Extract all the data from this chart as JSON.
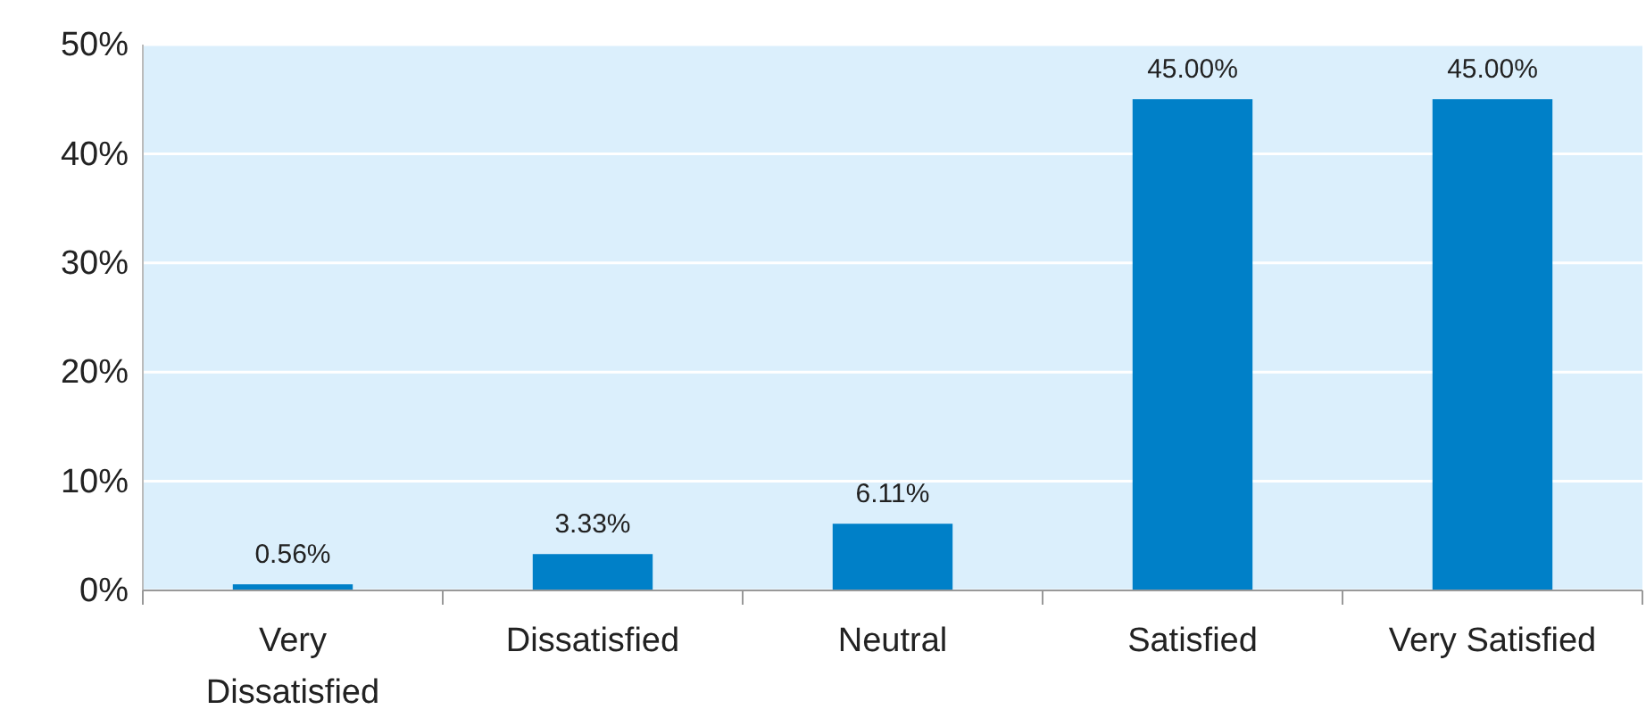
{
  "chart_data": {
    "type": "bar",
    "categories": [
      "Very Dissatisfied",
      "Dissatisfied",
      "Neutral",
      "Satisfied",
      "Very Satisfied"
    ],
    "values": [
      0.56,
      3.33,
      6.11,
      45.0,
      45.0
    ],
    "value_labels": [
      "0.56%",
      "3.33%",
      "6.11%",
      "45.00%",
      "45.00%"
    ],
    "color": "#0080c8",
    "ylim": [
      0,
      50
    ],
    "yticks": [
      {
        "value": 0,
        "label": "0%"
      },
      {
        "value": 10,
        "label": "10%"
      },
      {
        "value": 20,
        "label": "20%"
      },
      {
        "value": 30,
        "label": "30%"
      },
      {
        "value": 40,
        "label": "40%"
      },
      {
        "value": 50,
        "label": "50%"
      }
    ],
    "grid": "y"
  }
}
